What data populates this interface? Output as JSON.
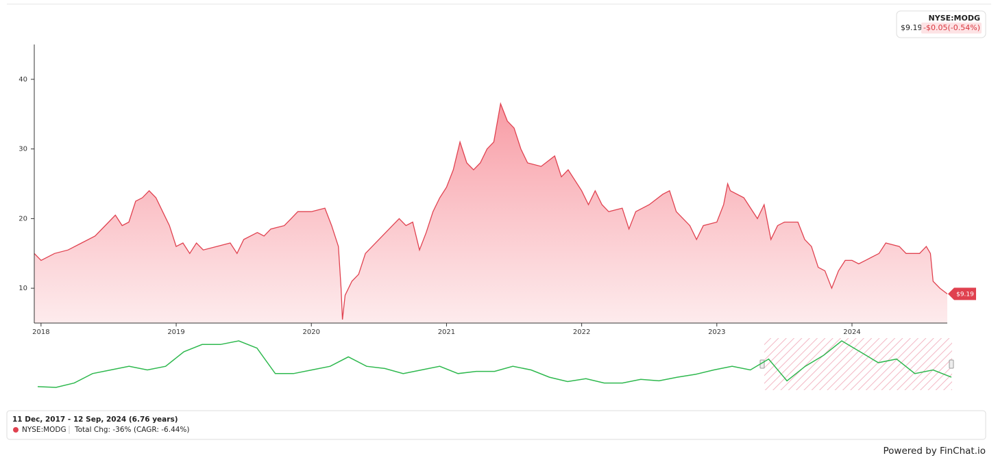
{
  "chart_data": {
    "type": "area",
    "x": [
      2017.95,
      2018.0,
      2018.1,
      2018.2,
      2018.3,
      2018.4,
      2018.5,
      2018.55,
      2018.6,
      2018.65,
      2018.7,
      2018.75,
      2018.8,
      2018.85,
      2018.9,
      2018.95,
      2019.0,
      2019.05,
      2019.1,
      2019.15,
      2019.2,
      2019.3,
      2019.4,
      2019.45,
      2019.5,
      2019.6,
      2019.65,
      2019.7,
      2019.8,
      2019.85,
      2019.9,
      2020.0,
      2020.1,
      2020.15,
      2020.2,
      2020.22,
      2020.23,
      2020.25,
      2020.3,
      2020.35,
      2020.4,
      2020.45,
      2020.5,
      2020.55,
      2020.6,
      2020.65,
      2020.7,
      2020.75,
      2020.8,
      2020.85,
      2020.9,
      2020.95,
      2021.0,
      2021.05,
      2021.1,
      2021.15,
      2021.2,
      2021.25,
      2021.3,
      2021.35,
      2021.4,
      2021.45,
      2021.5,
      2021.55,
      2021.6,
      2021.7,
      2021.8,
      2021.85,
      2021.9,
      2022.0,
      2022.05,
      2022.1,
      2022.15,
      2022.2,
      2022.3,
      2022.35,
      2022.4,
      2022.5,
      2022.6,
      2022.65,
      2022.7,
      2022.8,
      2022.85,
      2022.9,
      2023.0,
      2023.05,
      2023.08,
      2023.1,
      2023.2,
      2023.3,
      2023.35,
      2023.4,
      2023.45,
      2023.5,
      2023.6,
      2023.65,
      2023.7,
      2023.75,
      2023.8,
      2023.85,
      2023.9,
      2023.95,
      2024.0,
      2024.05,
      2024.1,
      2024.2,
      2024.25,
      2024.35,
      2024.4,
      2024.5,
      2024.55,
      2024.58,
      2024.6,
      2024.65,
      2024.705
    ],
    "series": [
      {
        "name": "NYSE:MODG",
        "color": "#e0414f",
        "values": [
          15,
          14,
          15,
          15.5,
          16.5,
          17.5,
          19.5,
          20.5,
          19,
          19.5,
          22.5,
          23,
          24,
          23,
          21,
          19,
          16,
          16.5,
          15,
          16.5,
          15.5,
          16,
          16.5,
          15,
          17,
          18,
          17.5,
          18.5,
          19,
          20,
          21,
          21,
          21.5,
          19,
          16,
          10,
          5.5,
          9,
          11,
          12,
          15,
          16,
          17,
          18,
          19,
          20,
          19,
          19.5,
          15.5,
          18,
          21,
          23,
          24.5,
          27,
          31,
          28,
          27,
          28,
          30,
          31,
          36.5,
          34,
          33,
          30,
          28,
          27.5,
          29,
          26,
          27,
          24,
          22,
          24,
          22,
          21,
          21.5,
          18.5,
          21,
          22,
          23.5,
          24,
          21,
          19,
          17,
          19,
          19.5,
          22,
          25,
          24,
          23,
          20,
          22,
          17,
          19,
          19.5,
          19.5,
          17,
          16,
          13,
          12.5,
          10,
          12.5,
          14,
          14,
          13.5,
          14,
          15,
          16.5,
          16,
          15,
          15,
          16,
          15,
          11,
          10,
          9.19
        ],
        "value_labels": [
          null,
          null,
          null,
          null,
          null,
          null,
          null,
          null,
          null,
          null,
          null,
          null,
          null,
          null,
          null,
          null,
          null,
          null,
          null,
          null,
          null,
          null,
          null,
          null,
          null,
          null,
          null,
          null,
          null,
          null,
          null,
          null,
          null,
          null,
          null,
          null,
          null,
          null,
          null,
          null,
          null,
          null,
          null,
          null,
          null,
          null,
          null,
          null,
          null,
          null,
          null,
          null,
          null,
          null,
          null,
          null,
          null,
          null,
          null,
          null,
          null,
          null,
          null,
          null,
          null,
          null,
          null,
          null,
          null,
          null,
          null,
          null,
          null,
          null,
          null,
          null,
          null,
          null,
          null,
          null,
          null,
          null,
          null,
          null,
          null,
          null,
          null,
          null,
          null,
          null,
          null,
          null,
          null,
          null,
          null,
          null,
          null,
          null,
          null,
          null,
          null,
          null,
          null,
          null,
          null,
          null,
          null,
          null,
          null,
          null,
          null,
          null,
          null,
          null,
          "$9.19"
        ]
      }
    ],
    "xlim": [
      2017.95,
      2024.705
    ],
    "xticks": [
      2018,
      2019,
      2020,
      2021,
      2022,
      2023,
      2024
    ],
    "ylim": [
      5,
      45
    ],
    "yticks": [
      10,
      20,
      30,
      40
    ],
    "navigator": {
      "color": "#2db84d",
      "values": [
        7,
        6,
        12,
        25,
        30,
        35,
        30,
        35,
        55,
        65,
        65,
        70,
        60,
        25,
        25,
        30,
        35,
        48,
        35,
        32,
        25,
        30,
        35,
        25,
        28,
        28,
        35,
        30,
        20,
        14,
        18,
        12,
        12,
        17,
        15,
        20,
        24,
        30,
        35,
        30,
        45,
        15,
        35,
        50,
        70,
        55,
        40,
        45,
        25,
        30,
        20
      ]
    }
  },
  "quote": {
    "ticker": "NYSE:MODG",
    "price": "$9.19",
    "change": "-$0.05(-0.54%)"
  },
  "summary": {
    "range": "11 Dec, 2017 - 12 Sep, 2024 (6.76 years)",
    "ticker": "NYSE:MODG",
    "change": "Total Chg: -36% (CAGR: -6.44%)"
  },
  "footer": "Powered by FinChat.io"
}
